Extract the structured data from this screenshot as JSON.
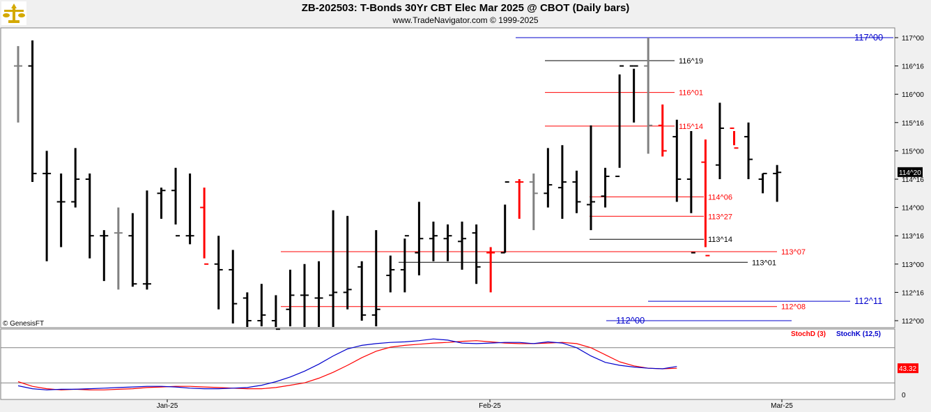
{
  "header": {
    "title": "ZB-202503:  T-Bonds 30Yr CBT Elec Mar 2025 @ CBOT  (Daily bars)",
    "subtitle": "www.TradeNavigator.com © 1999-2025"
  },
  "copyright": "© GenesisFT",
  "colors": {
    "bar_normal": "#000000",
    "bar_down": "#ff0000",
    "bar_neutral": "#808080",
    "level_blue": "#0000cc",
    "level_red": "#ff0000",
    "level_black": "#000000",
    "stoch_d": "#ff0000",
    "stoch_k": "#0000cc"
  },
  "chart_data": [
    {
      "type": "ohlc",
      "price_unit": "32nds",
      "y_ticks": [
        "117^00",
        "116^16",
        "116^00",
        "115^16",
        "115^00",
        "114^16",
        "114^00",
        "113^16",
        "113^00",
        "112^16",
        "112^00"
      ],
      "last_price_label": "114^20",
      "x_ticks": [
        "Jan-25",
        "Feb-25",
        "Mar-25"
      ],
      "bars": [
        {
          "o": 116.5,
          "h": 116.85,
          "l": 115.5,
          "c": 116.5,
          "color": "neutral"
        },
        {
          "o": 116.5,
          "h": 116.95,
          "l": 114.45,
          "c": 114.6,
          "color": "normal"
        },
        {
          "o": 114.6,
          "h": 115.0,
          "l": 113.05,
          "c": 114.6,
          "color": "normal"
        },
        {
          "o": 114.1,
          "h": 114.6,
          "l": 113.3,
          "c": 114.1,
          "color": "normal"
        },
        {
          "o": 114.1,
          "h": 115.05,
          "l": 114.0,
          "c": 114.5,
          "color": "normal"
        },
        {
          "o": 114.5,
          "h": 114.6,
          "l": 113.1,
          "c": 113.5,
          "color": "normal"
        },
        {
          "o": 113.5,
          "h": 113.6,
          "l": 112.7,
          "c": 113.5,
          "color": "normal"
        },
        {
          "o": 113.55,
          "h": 114.0,
          "l": 112.55,
          "c": 113.55,
          "color": "neutral"
        },
        {
          "o": 113.5,
          "h": 113.9,
          "l": 112.6,
          "c": 112.65,
          "color": "normal"
        },
        {
          "o": 112.65,
          "h": 114.3,
          "l": 112.55,
          "c": 112.65,
          "color": "normal"
        },
        {
          "o": 114.25,
          "h": 114.35,
          "l": 113.8,
          "c": 114.3,
          "color": "normal"
        },
        {
          "o": 114.3,
          "h": 114.7,
          "l": 113.7,
          "c": 113.5,
          "color": "normal"
        },
        {
          "o": 113.5,
          "h": 114.6,
          "l": 113.35,
          "c": 113.5,
          "color": "normal"
        },
        {
          "o": 114.0,
          "h": 114.35,
          "l": 113.1,
          "c": 113.0,
          "color": "down"
        },
        {
          "o": 113.0,
          "h": 113.5,
          "l": 112.2,
          "c": 112.9,
          "color": "normal"
        },
        {
          "o": 112.9,
          "h": 113.25,
          "l": 111.95,
          "c": 112.3,
          "color": "normal"
        },
        {
          "o": 112.4,
          "h": 112.5,
          "l": 111.8,
          "c": 112.0,
          "color": "normal"
        },
        {
          "o": 112.0,
          "h": 112.65,
          "l": 111.9,
          "c": 112.1,
          "color": "normal"
        },
        {
          "o": 112.0,
          "h": 112.45,
          "l": 111.8,
          "c": 111.85,
          "color": "normal"
        },
        {
          "o": 112.2,
          "h": 112.9,
          "l": 111.9,
          "c": 112.45,
          "color": "normal"
        },
        {
          "o": 112.45,
          "h": 113.0,
          "l": 111.7,
          "c": 112.45,
          "color": "normal"
        },
        {
          "o": 112.4,
          "h": 113.05,
          "l": 111.8,
          "c": 112.4,
          "color": "normal"
        },
        {
          "o": 112.45,
          "h": 113.95,
          "l": 111.8,
          "c": 112.5,
          "color": "normal"
        },
        {
          "o": 112.5,
          "h": 113.85,
          "l": 112.2,
          "c": 112.55,
          "color": "normal"
        },
        {
          "o": 112.95,
          "h": 113.05,
          "l": 112.0,
          "c": 112.1,
          "color": "normal"
        },
        {
          "o": 112.1,
          "h": 113.6,
          "l": 111.9,
          "c": 112.2,
          "color": "normal"
        },
        {
          "o": 112.8,
          "h": 113.15,
          "l": 112.5,
          "c": 112.9,
          "color": "normal"
        },
        {
          "o": 112.9,
          "h": 113.45,
          "l": 112.5,
          "c": 113.5,
          "color": "normal"
        },
        {
          "o": 113.2,
          "h": 114.1,
          "l": 112.8,
          "c": 113.45,
          "color": "normal"
        },
        {
          "o": 113.45,
          "h": 113.75,
          "l": 113.05,
          "c": 113.5,
          "color": "normal"
        },
        {
          "o": 113.45,
          "h": 113.7,
          "l": 113.05,
          "c": 113.5,
          "color": "normal"
        },
        {
          "o": 113.4,
          "h": 113.75,
          "l": 112.9,
          "c": 113.45,
          "color": "normal"
        },
        {
          "o": 113.55,
          "h": 113.7,
          "l": 112.65,
          "c": 112.95,
          "color": "normal"
        },
        {
          "o": 113.2,
          "h": 113.3,
          "l": 112.5,
          "c": 113.2,
          "color": "down"
        },
        {
          "o": 113.2,
          "h": 114.05,
          "l": 113.2,
          "c": 114.45,
          "color": "normal"
        },
        {
          "o": 114.45,
          "h": 114.5,
          "l": 113.8,
          "c": 114.45,
          "color": "down"
        },
        {
          "o": 114.45,
          "h": 114.6,
          "l": 113.6,
          "c": 114.25,
          "color": "neutral"
        },
        {
          "o": 114.25,
          "h": 115.05,
          "l": 114.0,
          "c": 114.4,
          "color": "normal"
        },
        {
          "o": 114.35,
          "h": 115.1,
          "l": 113.8,
          "c": 114.45,
          "color": "normal"
        },
        {
          "o": 114.45,
          "h": 114.65,
          "l": 113.9,
          "c": 114.1,
          "color": "normal"
        },
        {
          "o": 114.05,
          "h": 115.45,
          "l": 113.6,
          "c": 114.1,
          "color": "normal"
        },
        {
          "o": 114.2,
          "h": 114.7,
          "l": 114.0,
          "c": 114.55,
          "color": "normal"
        },
        {
          "o": 114.55,
          "h": 116.35,
          "l": 114.7,
          "c": 116.5,
          "color": "normal"
        },
        {
          "o": 116.5,
          "h": 116.45,
          "l": 115.5,
          "c": 116.5,
          "color": "normal"
        },
        {
          "o": 116.5,
          "h": 117.0,
          "l": 114.95,
          "c": 115.45,
          "color": "neutral"
        },
        {
          "o": 115.45,
          "h": 115.82,
          "l": 114.9,
          "c": 115.0,
          "color": "down"
        },
        {
          "o": 115.25,
          "h": 115.55,
          "l": 114.1,
          "c": 114.5,
          "color": "normal"
        },
        {
          "o": 114.5,
          "h": 115.35,
          "l": 113.9,
          "c": 113.2,
          "color": "normal"
        },
        {
          "o": 114.8,
          "h": 115.2,
          "l": 113.3,
          "c": 113.15,
          "color": "down"
        },
        {
          "o": 114.75,
          "h": 115.85,
          "l": 114.5,
          "c": 115.4,
          "color": "normal"
        },
        {
          "o": 115.4,
          "h": 115.35,
          "l": 115.1,
          "c": 115.05,
          "color": "down"
        },
        {
          "o": 115.25,
          "h": 115.5,
          "l": 114.5,
          "c": 114.85,
          "color": "normal"
        },
        {
          "o": 114.5,
          "h": 114.6,
          "l": 114.25,
          "c": 114.6,
          "color": "normal"
        },
        {
          "o": 114.6,
          "h": 114.75,
          "l": 114.1,
          "c": 114.62,
          "color": "normal"
        }
      ],
      "levels": [
        {
          "price": 117.0,
          "label": "117^00",
          "color": "blue"
        },
        {
          "price": 116.594,
          "label": "116^19",
          "color": "black"
        },
        {
          "price": 116.031,
          "label": "116^01",
          "color": "red"
        },
        {
          "price": 115.438,
          "label": "115^14",
          "color": "red"
        },
        {
          "price": 114.188,
          "label": "114^06",
          "color": "red"
        },
        {
          "price": 113.844,
          "label": "113^27",
          "color": "red"
        },
        {
          "price": 113.438,
          "label": "113^14",
          "color": "black"
        },
        {
          "price": 113.219,
          "label": "113^07",
          "color": "red"
        },
        {
          "price": 113.031,
          "label": "113^01",
          "color": "black"
        },
        {
          "price": 112.344,
          "label": "112^11",
          "color": "blue"
        },
        {
          "price": 112.25,
          "label": "112^08",
          "color": "red"
        },
        {
          "price": 112.0,
          "label": "112^00",
          "color": "blue"
        }
      ]
    },
    {
      "type": "line",
      "legend": [
        "StochD (3)",
        "StochK (12,5)"
      ],
      "y_ticks": [
        "0"
      ],
      "last_value_label": "43.32",
      "ylim": [
        0,
        100
      ],
      "series": [
        {
          "name": "StochD (3)",
          "color": "red",
          "values": [
            22,
            14,
            10,
            8,
            9,
            8,
            8,
            9,
            10,
            12,
            13,
            14,
            14,
            13,
            12,
            11,
            10,
            10,
            12,
            16,
            20,
            28,
            38,
            50,
            63,
            74,
            81,
            84,
            86,
            88,
            89,
            91,
            92,
            90,
            88,
            87,
            87,
            88,
            89,
            87,
            80,
            68,
            56,
            49,
            45,
            44,
            45
          ]
        },
        {
          "name": "StochK (12,5)",
          "color": "blue",
          "values": [
            15,
            10,
            8,
            9,
            9,
            10,
            11,
            12,
            13,
            14,
            14,
            13,
            11,
            10,
            10,
            11,
            12,
            16,
            22,
            30,
            40,
            52,
            66,
            78,
            84,
            87,
            89,
            90,
            92,
            95,
            93,
            88,
            87,
            88,
            89,
            89,
            87,
            90,
            88,
            80,
            66,
            55,
            50,
            47,
            45,
            44,
            48
          ]
        }
      ]
    }
  ]
}
